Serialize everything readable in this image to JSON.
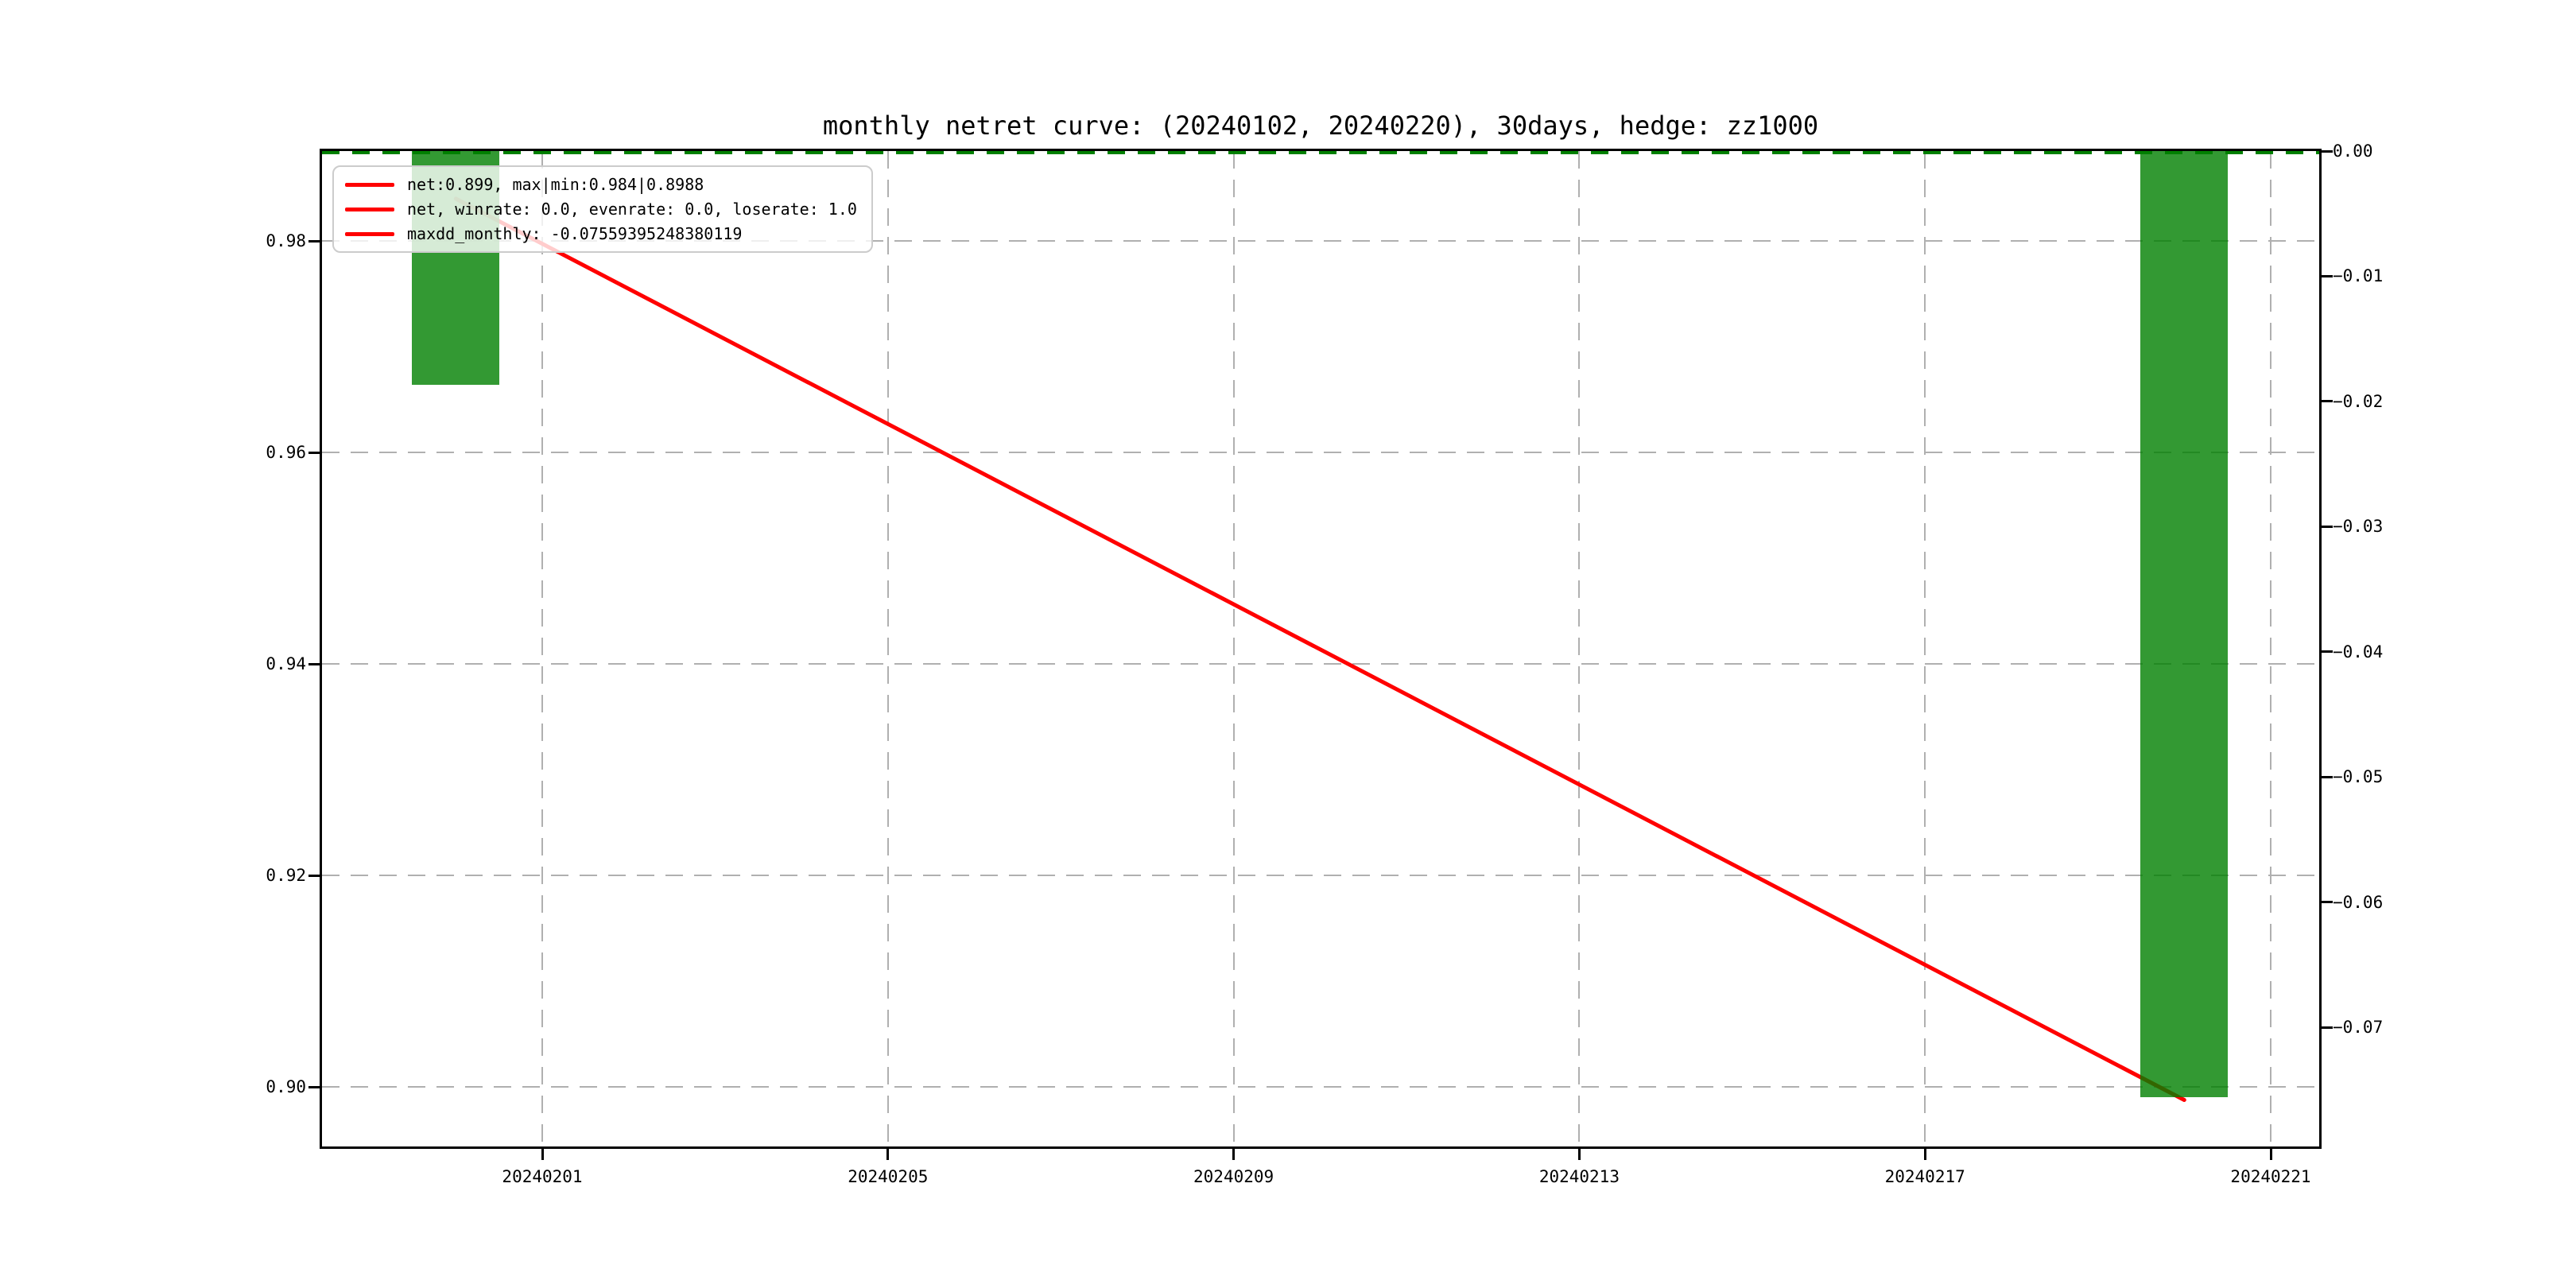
{
  "chart_data": {
    "type": "line+bar",
    "title": "monthly netret curve: (20240102, 20240220), 30days, hedge: zz1000",
    "grid": true,
    "legend_position": "upper left",
    "legend": [
      "net:0.899, max|min:0.984|0.8988",
      "net, winrate: 0.0, evenrate: 0.0, loserate: 1.0",
      "maxdd_monthly: -0.07559395248380119"
    ],
    "x_axis": {
      "ticks": [
        {
          "label": "20240201",
          "day": 0
        },
        {
          "label": "20240205",
          "day": 4
        },
        {
          "label": "20240209",
          "day": 8
        },
        {
          "label": "20240213",
          "day": 12
        },
        {
          "label": "20240217",
          "day": 16
        },
        {
          "label": "20240221",
          "day": 20
        }
      ]
    },
    "left_axis": {
      "range": [
        0.8944,
        0.9885
      ],
      "ticks": [
        {
          "label": "0.98",
          "value": 0.98
        },
        {
          "label": "0.96",
          "value": 0.96
        },
        {
          "label": "0.94",
          "value": 0.94
        },
        {
          "label": "0.92",
          "value": 0.92
        },
        {
          "label": "0.90",
          "value": 0.9
        }
      ]
    },
    "right_axis": {
      "range": [
        -0.0795,
        0.0
      ],
      "ticks": [
        {
          "label": "0.00",
          "value": 0.0
        },
        {
          "label": "−0.01",
          "value": -0.01
        },
        {
          "label": "−0.02",
          "value": -0.02
        },
        {
          "label": "−0.03",
          "value": -0.03
        },
        {
          "label": "−0.04",
          "value": -0.04
        },
        {
          "label": "−0.05",
          "value": -0.05
        },
        {
          "label": "−0.06",
          "value": -0.06
        },
        {
          "label": "−0.07",
          "value": -0.07
        }
      ]
    },
    "line_series": {
      "name": "net",
      "color": "#ff0000",
      "points": [
        {
          "date": "20240131",
          "day": -1,
          "value": 0.984
        },
        {
          "date": "20240220",
          "day": 19,
          "value": 0.8988
        }
      ]
    },
    "bar_series": {
      "name": "maxdd_monthly",
      "color": "#008000",
      "opacity": 0.8,
      "bars": [
        {
          "date": "20240131",
          "day": -1,
          "value": -0.0187
        },
        {
          "date": "20240220",
          "day": 19,
          "value": -0.07559395248380119
        }
      ]
    },
    "zero_line": {
      "axis": "right",
      "value": 0.0,
      "color": "#008000",
      "linestyle": "dashed"
    },
    "colors": {
      "grid": "#b0b0b0",
      "spine": "#000000",
      "legend_border": "#cccccc"
    }
  }
}
